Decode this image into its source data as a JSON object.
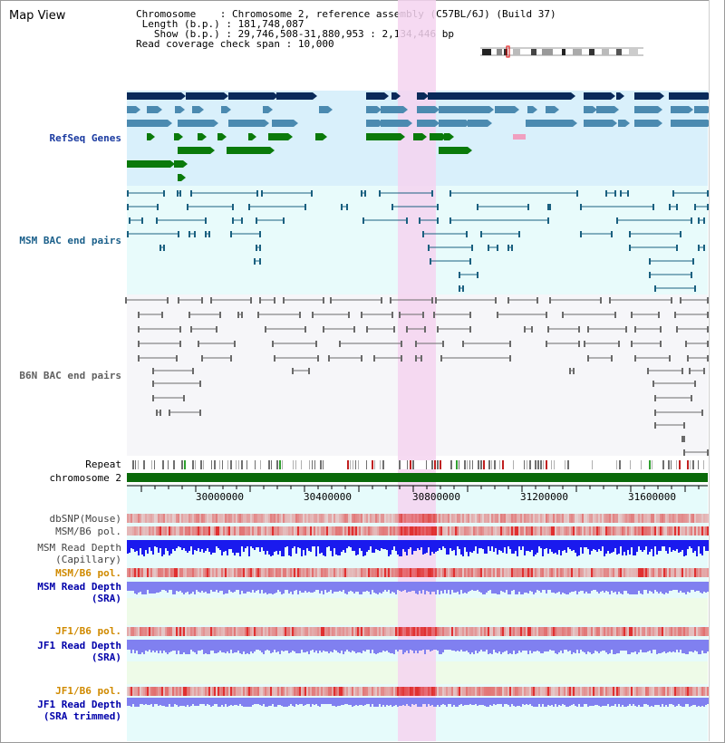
{
  "title": "Map View",
  "info": {
    "chromosome_label": "Chromosome",
    "chromosome_value": "Chromosome 2, reference assembly (C57BL/6J) (Build 37)",
    "length_label": "Length (b.p.)",
    "length_value": "181,748,087",
    "show_label": "Show (b.p.)",
    "show_value": "29,746,508-31,880,953 : 2,134,446 bp",
    "coverage_label": "Read coverage check span",
    "coverage_value": "10,000"
  },
  "tracks": {
    "refseq": "RefSeq Genes",
    "msm_bac": "MSM BAC end pairs",
    "b6n_bac": "B6N BAC end pairs",
    "repeat": "Repeat",
    "chromosome": "chromosome 2",
    "dbsnp": "dbSNP(Mouse)",
    "msm_b6_pol_1": "MSM/B6 pol.",
    "msm_read_depth_1": "MSM Read Depth",
    "msm_read_depth_1_sub": "(Capillary)",
    "msm_b6_pol_2": "MSM/B6 pol.",
    "msm_read_depth_2": "MSM Read Depth",
    "msm_read_depth_2_sub": "(SRA)",
    "jf1_b6_pol_1": "JF1/B6 pol.",
    "jf1_read_depth_1": "JF1 Read Depth",
    "jf1_read_depth_1_sub": "(SRA)",
    "jf1_b6_pol_2": "JF1/B6 pol.",
    "jf1_read_depth_2": "JF1 Read Depth",
    "jf1_read_depth_2_sub": "(SRA trimmed)"
  },
  "axis": {
    "ticks": [
      "30000000",
      "30400000",
      "30800000",
      "31200000",
      "31600000"
    ]
  },
  "colors": {
    "refseq_bg": "#d9f0fb",
    "msm_bg": "#e8fbfb",
    "b6n_bg": "#f6f6f9",
    "highlight": "#f5d3f0",
    "navy": "#0a2a5a",
    "steel": "#4b8ab0",
    "green": "#0a7a0a",
    "chromosome": "#0a6a0a",
    "msm_label": "#1a4fa0",
    "pol_label": "#d08a00",
    "depth_label": "#0000aa",
    "depth_blue": "#1a1aee",
    "depth_lilac": "#8080f0",
    "pol_red": "#e03030"
  }
}
